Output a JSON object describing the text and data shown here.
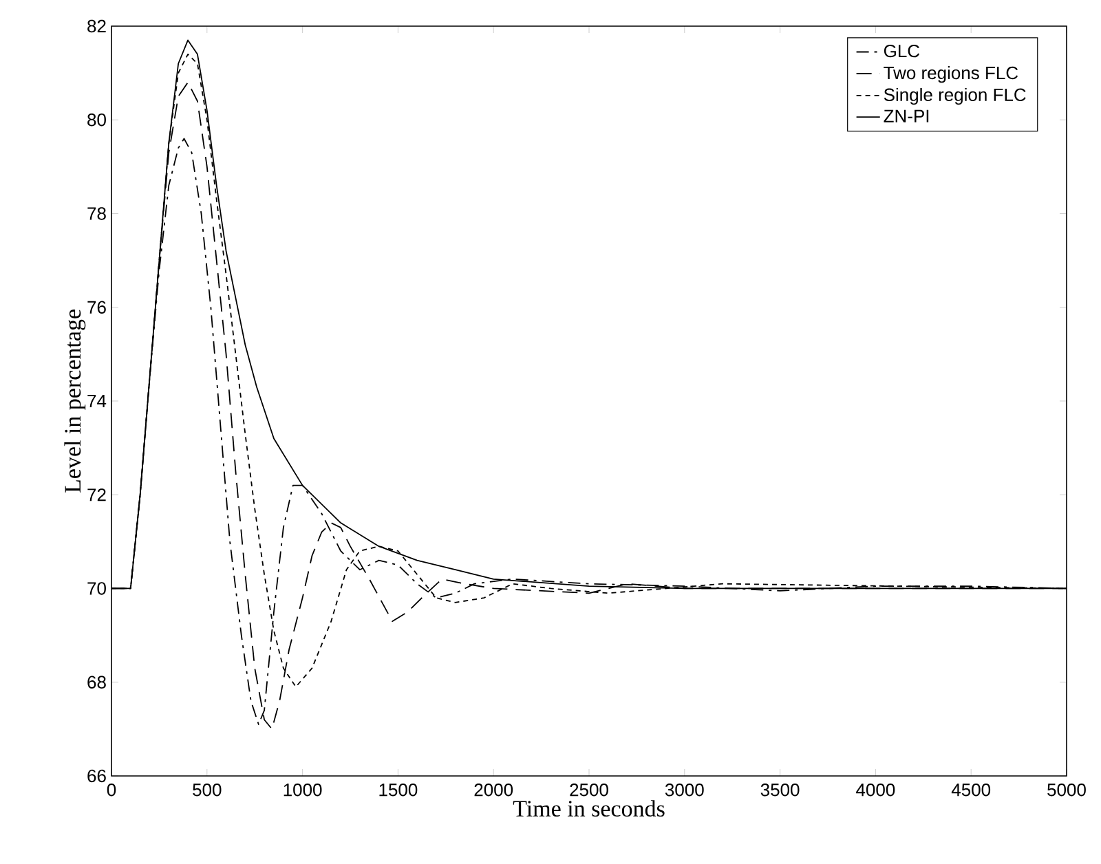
{
  "chart_data": {
    "type": "line",
    "xlabel": "Time in seconds",
    "ylabel": "Level in percentage",
    "xlim": [
      0,
      5000
    ],
    "ylim": [
      66,
      82
    ],
    "xticks": [
      0,
      500,
      1000,
      1500,
      2000,
      2500,
      3000,
      3500,
      4000,
      4500,
      5000
    ],
    "yticks": [
      66,
      68,
      70,
      72,
      74,
      76,
      78,
      80,
      82
    ],
    "legend": "top right",
    "grid": false,
    "marker": "none",
    "series": [
      {
        "name": "GLC",
        "color": "#000000",
        "line_style": "dashdot",
        "x": [
          0,
          100,
          150,
          200,
          250,
          300,
          350,
          380,
          420,
          470,
          520,
          570,
          620,
          680,
          730,
          770,
          800,
          850,
          900,
          950,
          1000,
          1100,
          1200,
          1300,
          1400,
          1500,
          1600,
          1700,
          1800,
          1900,
          2100,
          2500,
          3000,
          3500,
          4000,
          4500,
          5000
        ],
        "values": [
          70,
          70,
          72,
          74.5,
          76.8,
          78.6,
          79.4,
          79.6,
          79.3,
          78,
          76,
          73.5,
          71,
          69,
          67.6,
          67.1,
          67.4,
          69.5,
          71.3,
          72.2,
          72.2,
          71.6,
          70.8,
          70.4,
          70.6,
          70.5,
          70.1,
          69.8,
          69.9,
          70.1,
          70.2,
          70.1,
          70.05,
          69.95,
          70.05,
          70.05,
          70
        ]
      },
      {
        "name": "Two regions  FLC",
        "color": "#000000",
        "line_style": "dashed",
        "x": [
          0,
          100,
          150,
          200,
          250,
          300,
          350,
          400,
          450,
          500,
          550,
          600,
          650,
          700,
          750,
          800,
          840,
          880,
          930,
          1000,
          1050,
          1100,
          1150,
          1200,
          1250,
          1350,
          1470,
          1550,
          1650,
          1730,
          1850,
          2000,
          2500,
          2700,
          3000,
          5000
        ],
        "values": [
          70,
          70,
          72,
          74.5,
          77,
          79.3,
          80.5,
          80.8,
          80.4,
          79,
          77,
          75,
          72.5,
          70.3,
          68.3,
          67.2,
          67,
          67.6,
          68.7,
          69.8,
          70.7,
          71.2,
          71.4,
          71.3,
          70.9,
          70.2,
          69.3,
          69.5,
          69.9,
          70.2,
          70.1,
          70,
          69.9,
          70.1,
          70,
          70
        ]
      },
      {
        "name": "Single region FLC",
        "color": "#000000",
        "line_style": "dotted",
        "x": [
          0,
          100,
          150,
          200,
          250,
          300,
          350,
          400,
          450,
          500,
          550,
          600,
          650,
          700,
          750,
          800,
          850,
          900,
          965,
          1050,
          1150,
          1230,
          1300,
          1400,
          1500,
          1600,
          1700,
          1800,
          1950,
          2100,
          2300,
          2600,
          3200,
          5000
        ],
        "values": [
          70,
          70,
          72,
          74.5,
          77,
          79.5,
          81,
          81.4,
          81.2,
          80,
          78.3,
          76.7,
          75,
          73.3,
          71.7,
          70.3,
          69.1,
          68.3,
          67.9,
          68.3,
          69.3,
          70.4,
          70.8,
          70.9,
          70.8,
          70.3,
          69.8,
          69.7,
          69.8,
          70.1,
          70,
          69.9,
          70.1,
          70
        ]
      },
      {
        "name": "ZN-PI",
        "color": "#000000",
        "line_style": "solid",
        "x": [
          0,
          100,
          150,
          200,
          250,
          300,
          350,
          400,
          450,
          500,
          550,
          600,
          650,
          700,
          760,
          850,
          1000,
          1200,
          1400,
          1600,
          1800,
          2000,
          2500,
          3000,
          5000
        ],
        "values": [
          70,
          70,
          72,
          74.5,
          77,
          79.5,
          81.2,
          81.7,
          81.4,
          80.2,
          78.6,
          77.2,
          76.2,
          75.2,
          74.3,
          73.2,
          72.2,
          71.4,
          70.9,
          70.6,
          70.4,
          70.2,
          70.05,
          70,
          70
        ]
      }
    ]
  }
}
